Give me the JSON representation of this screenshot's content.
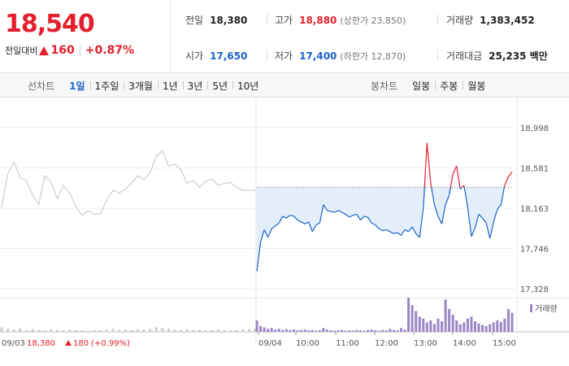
{
  "quote": {
    "price": "18,540",
    "change_label": "전일대비",
    "change_value": "160",
    "change_pct": "+0.87%",
    "prev_close_label": "전일",
    "prev_close": "18,380",
    "high_label": "고가",
    "high": "18,880",
    "upper_limit_label": "(상한가 23,850)",
    "volume_label": "거래량",
    "volume": "1,383,452",
    "open_label": "시가",
    "open": "17,650",
    "low_label": "저가",
    "low": "17,400",
    "lower_limit_label": "(하한가 12,870)",
    "trade_value_label": "거래대금",
    "trade_value": "25,235 백만"
  },
  "tabs": {
    "line_title": "선차트",
    "line_tabs": [
      "1일",
      "1주일",
      "3개월",
      "1년",
      "3년",
      "5년",
      "10년"
    ],
    "active_line_tab": 0,
    "candle_title": "봉차트",
    "candle_tabs": [
      "일봉",
      "주봉",
      "월봉"
    ]
  },
  "colors": {
    "up": "#e3202c",
    "down": "#1a63c7",
    "prev_day": "#c4c4c4",
    "band_fill": "#e4eefb",
    "volume_today": "#9b86c6",
    "volume_prev": "#cccccc"
  },
  "chart_data": {
    "type": "line",
    "y_ticks": [
      "18,998",
      "18,581",
      "18,163",
      "17,746",
      "17,328"
    ],
    "ylim": [
      17328,
      18998
    ],
    "reference_price": 18380,
    "x_ticks": [
      "09/04",
      "10:00",
      "11:00",
      "12:00",
      "13:00",
      "14:00",
      "15:00"
    ],
    "prev_day_label": "09/03",
    "prev_day_close": "18,380",
    "prev_day_change": "180",
    "prev_day_pct": "(+0.99%)",
    "volume_legend": "거래량",
    "series": [
      {
        "values": [
          18170,
          18520,
          18640,
          18480,
          18450,
          18300,
          18200,
          18500,
          18430,
          18260,
          18400,
          18320,
          18180,
          18090,
          18140,
          18100,
          18110,
          18250,
          18350,
          18320,
          18360,
          18420,
          18500,
          18460,
          18530,
          18700,
          18760,
          18600,
          18620,
          18560,
          18420,
          18450,
          18380,
          18440,
          18470,
          18400,
          18420,
          18430,
          18380,
          18350,
          18350,
          18350
        ]
      },
      {
        "values": [
          17510,
          17810,
          17940,
          17860,
          17950,
          17980,
          18010,
          18080,
          18060,
          18090,
          18080,
          18040,
          18020,
          18000,
          18020,
          17920,
          17990,
          18010,
          18200,
          18140,
          18130,
          18120,
          18140,
          18120,
          18100,
          18070,
          18090,
          18100,
          18040,
          18080,
          18070,
          18010,
          17990,
          17950,
          17930,
          17940,
          17920,
          17900,
          17910,
          17880,
          17940,
          17920,
          17970,
          17900,
          17860,
          18160,
          18840,
          18420,
          18200,
          18080,
          18000,
          18200,
          18300,
          18520,
          18600,
          18360,
          18400,
          18170,
          17870,
          17960,
          18100,
          18060,
          18010,
          17850,
          18020,
          18150,
          18200,
          18400,
          18490,
          18540
        ]
      }
    ],
    "volume_today": [
      30,
      15,
      12,
      8,
      10,
      6,
      8,
      5,
      7,
      5,
      6,
      4,
      5,
      6,
      4,
      5,
      3,
      4,
      10,
      6,
      4,
      3,
      4,
      5,
      3,
      4,
      3,
      5,
      4,
      3,
      5,
      6,
      4,
      3,
      5,
      4,
      8,
      5,
      4,
      10,
      6,
      90,
      70,
      55,
      40,
      35,
      25,
      30,
      20,
      35,
      28,
      85,
      60,
      45,
      30,
      20,
      25,
      35,
      40,
      28,
      22,
      18,
      15,
      20,
      25,
      30,
      26,
      35,
      60,
      50
    ],
    "volume_prev": [
      12,
      8,
      6,
      9,
      5,
      7,
      5,
      4,
      6,
      5,
      4,
      6,
      5,
      4,
      3,
      5,
      4,
      6,
      8,
      5,
      6,
      5,
      7,
      6,
      8,
      12,
      10,
      8,
      6,
      5,
      7,
      5,
      6,
      4,
      5,
      6,
      5,
      4,
      5,
      6,
      7,
      9
    ]
  }
}
